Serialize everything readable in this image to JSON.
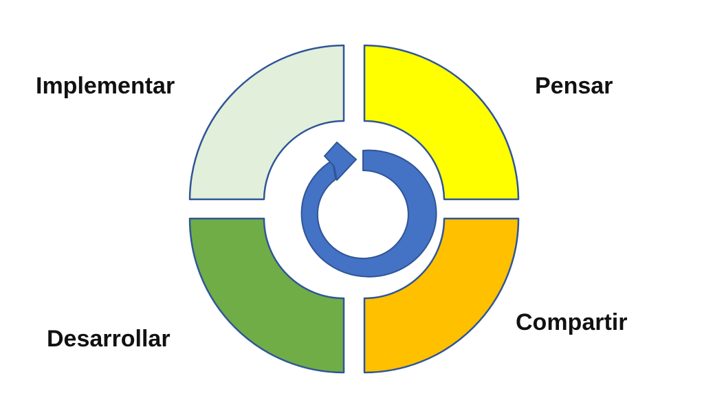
{
  "segments": [
    {
      "key": "implementar",
      "label": "Implementar",
      "fill": "#E2EFDA"
    },
    {
      "key": "pensar",
      "label": "Pensar",
      "fill": "#FFFF00"
    },
    {
      "key": "compartir",
      "label": "Compartir",
      "fill": "#FFC000"
    },
    {
      "key": "desarrollar",
      "label": "Desarrollar",
      "fill": "#70AD47"
    }
  ],
  "colors": {
    "outline": "#2F5597",
    "arrow_fill": "#4472C4",
    "arrow_stroke": "#2F5597"
  },
  "center_icon": "cycle-arrow-icon"
}
